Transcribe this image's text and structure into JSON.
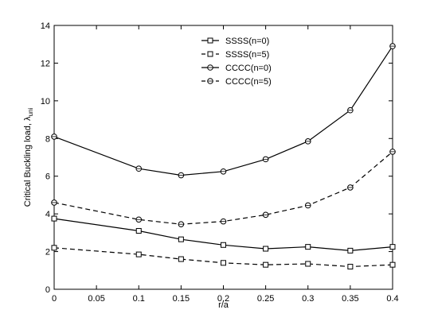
{
  "chart_data": {
    "type": "line",
    "title": "",
    "xlabel": "r/a",
    "ylabel_main": "Critical Buckling load, λ",
    "ylabel_sub": "uni",
    "xlim": [
      0,
      0.4
    ],
    "ylim": [
      0,
      14
    ],
    "x_ticks": [
      "0",
      "0.05",
      "0.1",
      "0.15",
      "0.2",
      "0.25",
      "0.3",
      "0.35",
      "0.4"
    ],
    "y_ticks": [
      "0",
      "2",
      "4",
      "6",
      "8",
      "10",
      "12",
      "14"
    ],
    "grid": false,
    "legend_position": "top-center",
    "x": [
      0,
      0.1,
      0.15,
      0.2,
      0.25,
      0.3,
      0.35,
      0.4
    ],
    "series": [
      {
        "name": "SSSS(n=0)",
        "marker": "square",
        "line": "solid",
        "values": [
          3.75,
          3.1,
          2.65,
          2.35,
          2.15,
          2.25,
          2.05,
          2.25
        ]
      },
      {
        "name": "SSSS(n=5)",
        "marker": "square",
        "line": "dashed",
        "values": [
          2.2,
          1.85,
          1.6,
          1.4,
          1.3,
          1.35,
          1.2,
          1.3
        ]
      },
      {
        "name": "CCCC(n=0)",
        "marker": "circle",
        "line": "solid",
        "values": [
          8.1,
          6.4,
          6.05,
          6.25,
          6.9,
          7.85,
          9.5,
          12.9
        ]
      },
      {
        "name": "CCCC(n=5)",
        "marker": "circle",
        "line": "dashed",
        "values": [
          4.6,
          3.7,
          3.45,
          3.6,
          3.95,
          4.45,
          5.4,
          7.3
        ]
      }
    ]
  }
}
